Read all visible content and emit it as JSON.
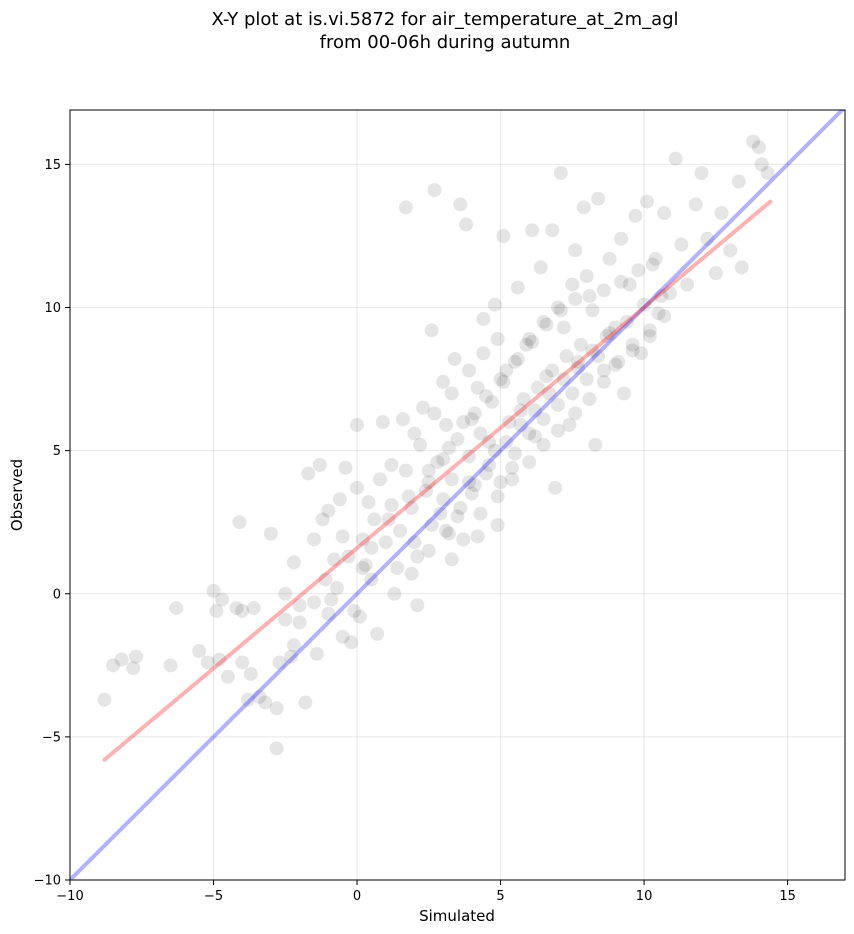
{
  "chart_data": {
    "type": "scatter",
    "title_lines": [
      "X-Y plot at is.vi.5872 for air_temperature_at_2m_agl",
      "from 00-06h during autumn"
    ],
    "xlabel": "Simulated",
    "ylabel": "Observed",
    "xlim": [
      -10,
      17
    ],
    "ylim": [
      -10,
      16.9
    ],
    "xticks": [
      -10,
      -5,
      0,
      5,
      10,
      15
    ],
    "xtick_labels": [
      "−10",
      "−5",
      "0",
      "5",
      "10",
      "15"
    ],
    "yticks": [
      -10,
      -5,
      0,
      5,
      10,
      15
    ],
    "ytick_labels": [
      "−10",
      "−5",
      "0",
      "5",
      "10",
      "15"
    ],
    "grid": true,
    "legend": "none",
    "point_color": "#000000",
    "point_alpha": 0.1,
    "series": [
      {
        "points": [
          [
            -8.8,
            -3.7
          ],
          [
            -8.5,
            -2.5
          ],
          [
            -8.2,
            -2.3
          ],
          [
            -7.8,
            -2.6
          ],
          [
            -7.7,
            -2.2
          ],
          [
            -6.5,
            -2.5
          ],
          [
            -6.3,
            -0.5
          ],
          [
            -5.5,
            -2.0
          ],
          [
            -5.2,
            -2.4
          ],
          [
            -5.0,
            0.1
          ],
          [
            -4.9,
            -0.6
          ],
          [
            -4.8,
            -2.3
          ],
          [
            -4.7,
            -0.2
          ],
          [
            -4.5,
            -2.9
          ],
          [
            -4.2,
            -0.5
          ],
          [
            -4.1,
            2.5
          ],
          [
            -4.0,
            -0.6
          ],
          [
            -4.0,
            -2.4
          ],
          [
            -3.8,
            -3.7
          ],
          [
            -3.7,
            -2.8
          ],
          [
            -3.6,
            -0.5
          ],
          [
            -3.4,
            -3.6
          ],
          [
            -3.2,
            -3.8
          ],
          [
            -3.0,
            2.1
          ],
          [
            -2.8,
            -5.4
          ],
          [
            -2.8,
            -4.0
          ],
          [
            -2.7,
            -2.4
          ],
          [
            -2.5,
            -0.9
          ],
          [
            -2.3,
            -2.2
          ],
          [
            -2.2,
            1.1
          ],
          [
            -2.0,
            -0.4
          ],
          [
            -1.8,
            -3.8
          ],
          [
            -1.7,
            4.2
          ],
          [
            -1.5,
            1.9
          ],
          [
            -1.3,
            4.5
          ],
          [
            -1.2,
            2.6
          ],
          [
            -1.0,
            -0.7
          ],
          [
            -0.8,
            1.2
          ],
          [
            -0.6,
            3.3
          ],
          [
            -0.5,
            -1.5
          ],
          [
            -0.4,
            4.4
          ],
          [
            -0.2,
            -1.7
          ],
          [
            0.0,
            5.9
          ],
          [
            0.1,
            -0.8
          ],
          [
            0.2,
            1.9
          ],
          [
            0.4,
            3.2
          ],
          [
            0.5,
            0.5
          ],
          [
            0.7,
            -1.4
          ],
          [
            0.9,
            6.0
          ],
          [
            1.1,
            2.6
          ],
          [
            1.2,
            4.5
          ],
          [
            1.4,
            0.9
          ],
          [
            1.6,
            6.1
          ],
          [
            1.7,
            13.5
          ],
          [
            1.8,
            3.4
          ],
          [
            2.0,
            1.8
          ],
          [
            2.1,
            -0.4
          ],
          [
            2.3,
            6.5
          ],
          [
            2.5,
            4.3
          ],
          [
            2.6,
            9.2
          ],
          [
            2.7,
            14.1
          ],
          [
            2.9,
            2.8
          ],
          [
            3.0,
            7.4
          ],
          [
            3.2,
            5.1
          ],
          [
            3.3,
            1.2
          ],
          [
            3.4,
            8.2
          ],
          [
            3.6,
            13.6
          ],
          [
            3.8,
            12.9
          ],
          [
            3.9,
            3.9
          ],
          [
            4.1,
            6.3
          ],
          [
            4.2,
            2.0
          ],
          [
            4.4,
            9.6
          ],
          [
            4.6,
            5.3
          ],
          [
            4.8,
            10.1
          ],
          [
            4.9,
            2.4
          ],
          [
            5.1,
            12.5
          ],
          [
            5.2,
            7.8
          ],
          [
            5.4,
            4.4
          ],
          [
            5.6,
            10.7
          ],
          [
            5.7,
            6.4
          ],
          [
            5.9,
            8.7
          ],
          [
            6.1,
            12.7
          ],
          [
            6.2,
            5.5
          ],
          [
            6.4,
            11.4
          ],
          [
            6.6,
            7.6
          ],
          [
            6.8,
            12.7
          ],
          [
            6.9,
            3.7
          ],
          [
            7.1,
            14.7
          ],
          [
            7.2,
            9.3
          ],
          [
            7.4,
            5.9
          ],
          [
            7.6,
            12.0
          ],
          [
            7.7,
            8.1
          ],
          [
            7.9,
            13.5
          ],
          [
            8.1,
            10.4
          ],
          [
            8.3,
            5.2
          ],
          [
            8.4,
            13.8
          ],
          [
            8.6,
            7.8
          ],
          [
            8.8,
            11.7
          ],
          [
            9.0,
            9.3
          ],
          [
            9.2,
            12.4
          ],
          [
            9.3,
            7.0
          ],
          [
            9.5,
            10.8
          ],
          [
            9.7,
            13.2
          ],
          [
            9.9,
            8.4
          ],
          [
            10.1,
            13.7
          ],
          [
            10.3,
            11.5
          ],
          [
            10.5,
            9.8
          ],
          [
            10.7,
            13.3
          ],
          [
            10.9,
            10.5
          ],
          [
            11.1,
            15.2
          ],
          [
            11.3,
            12.2
          ],
          [
            11.5,
            10.8
          ],
          [
            11.8,
            13.6
          ],
          [
            12.0,
            14.7
          ],
          [
            12.2,
            12.4
          ],
          [
            12.5,
            11.2
          ],
          [
            12.7,
            13.3
          ],
          [
            13.0,
            12.0
          ],
          [
            13.3,
            14.4
          ],
          [
            13.4,
            11.4
          ],
          [
            13.8,
            15.8
          ],
          [
            14.1,
            15.0
          ],
          [
            14.3,
            14.7
          ],
          [
            14.0,
            15.6
          ],
          [
            -1.0,
            2.9
          ],
          [
            -0.5,
            2.0
          ],
          [
            0.0,
            3.7
          ],
          [
            0.3,
            1.0
          ],
          [
            0.6,
            2.6
          ],
          [
            0.8,
            4.0
          ],
          [
            1.0,
            1.8
          ],
          [
            1.2,
            3.1
          ],
          [
            1.5,
            2.2
          ],
          [
            1.7,
            4.3
          ],
          [
            1.9,
            3.0
          ],
          [
            2.1,
            1.3
          ],
          [
            2.2,
            5.2
          ],
          [
            2.4,
            3.6
          ],
          [
            2.6,
            2.4
          ],
          [
            2.8,
            4.6
          ],
          [
            3.0,
            3.3
          ],
          [
            3.1,
            5.9
          ],
          [
            3.3,
            4.0
          ],
          [
            3.5,
            2.7
          ],
          [
            3.7,
            6.0
          ],
          [
            3.9,
            4.8
          ],
          [
            4.0,
            3.5
          ],
          [
            4.2,
            7.2
          ],
          [
            4.3,
            5.6
          ],
          [
            4.5,
            4.2
          ],
          [
            4.7,
            6.7
          ],
          [
            4.8,
            5.0
          ],
          [
            5.0,
            3.9
          ],
          [
            5.1,
            7.4
          ],
          [
            5.3,
            6.0
          ],
          [
            5.5,
            4.9
          ],
          [
            5.6,
            8.2
          ],
          [
            5.8,
            6.8
          ],
          [
            6.0,
            5.6
          ],
          [
            6.1,
            8.8
          ],
          [
            6.3,
            7.2
          ],
          [
            6.5,
            6.1
          ],
          [
            6.6,
            9.4
          ],
          [
            6.8,
            7.8
          ],
          [
            7.0,
            6.6
          ],
          [
            7.1,
            9.9
          ],
          [
            7.3,
            8.3
          ],
          [
            7.5,
            7.0
          ],
          [
            7.6,
            10.3
          ],
          [
            7.8,
            8.7
          ],
          [
            8.0,
            7.5
          ],
          [
            8.2,
            9.9
          ],
          [
            8.4,
            8.3
          ],
          [
            8.6,
            10.6
          ],
          [
            8.8,
            9.1
          ],
          [
            9.0,
            8.0
          ],
          [
            9.2,
            10.9
          ],
          [
            9.4,
            9.5
          ],
          [
            9.6,
            8.5
          ],
          [
            9.8,
            11.3
          ],
          [
            10.0,
            10.1
          ],
          [
            10.2,
            9.0
          ],
          [
            10.4,
            11.7
          ],
          [
            10.6,
            10.4
          ],
          [
            3.2,
            2.1
          ],
          [
            3.6,
            3.0
          ],
          [
            4.1,
            3.8
          ],
          [
            4.6,
            4.5
          ],
          [
            5.2,
            5.3
          ],
          [
            5.7,
            5.9
          ],
          [
            6.2,
            6.4
          ],
          [
            6.7,
            7.0
          ],
          [
            7.2,
            7.5
          ],
          [
            7.7,
            7.9
          ],
          [
            8.2,
            8.5
          ],
          [
            8.7,
            9.0
          ],
          [
            2.5,
            3.9
          ],
          [
            3.0,
            4.7
          ],
          [
            3.5,
            5.4
          ],
          [
            4.0,
            6.1
          ],
          [
            4.5,
            6.9
          ],
          [
            5.0,
            7.5
          ],
          [
            5.5,
            8.1
          ],
          [
            6.0,
            8.9
          ],
          [
            6.5,
            9.5
          ],
          [
            7.0,
            10.0
          ],
          [
            7.5,
            10.8
          ],
          [
            8.0,
            11.1
          ],
          [
            2.0,
            5.6
          ],
          [
            2.7,
            6.3
          ],
          [
            3.3,
            7.0
          ],
          [
            3.9,
            7.8
          ],
          [
            4.4,
            8.4
          ],
          [
            4.9,
            8.9
          ],
          [
            1.3,
            0.0
          ],
          [
            1.9,
            0.7
          ],
          [
            2.5,
            1.5
          ],
          [
            3.1,
            2.2
          ],
          [
            3.7,
            1.9
          ],
          [
            4.3,
            2.8
          ],
          [
            4.9,
            3.4
          ],
          [
            5.4,
            4.0
          ],
          [
            6.0,
            4.6
          ],
          [
            6.5,
            5.2
          ],
          [
            7.0,
            5.7
          ],
          [
            7.6,
            6.3
          ],
          [
            8.1,
            6.8
          ],
          [
            8.6,
            7.4
          ],
          [
            9.1,
            8.1
          ],
          [
            9.6,
            8.7
          ],
          [
            10.2,
            9.2
          ],
          [
            10.7,
            9.7
          ],
          [
            -2.0,
            -1.0
          ],
          [
            -1.5,
            -0.3
          ],
          [
            -1.1,
            0.5
          ],
          [
            -0.7,
            0.2
          ],
          [
            -0.3,
            1.3
          ],
          [
            0.2,
            0.9
          ],
          [
            -2.5,
            0.0
          ],
          [
            -2.2,
            -1.8
          ],
          [
            -1.4,
            -2.1
          ],
          [
            -0.9,
            -0.2
          ],
          [
            -0.1,
            -0.6
          ],
          [
            0.5,
            1.6
          ]
        ]
      }
    ],
    "identity_line": {
      "color": "#0000ff",
      "alpha": 0.3,
      "x": [
        -10,
        17
      ],
      "y": [
        -10,
        17
      ]
    },
    "regression_line": {
      "color": "#ff0000",
      "alpha": 0.3,
      "x": [
        -8.8,
        14.4
      ],
      "y": [
        -5.8,
        13.7
      ]
    }
  }
}
